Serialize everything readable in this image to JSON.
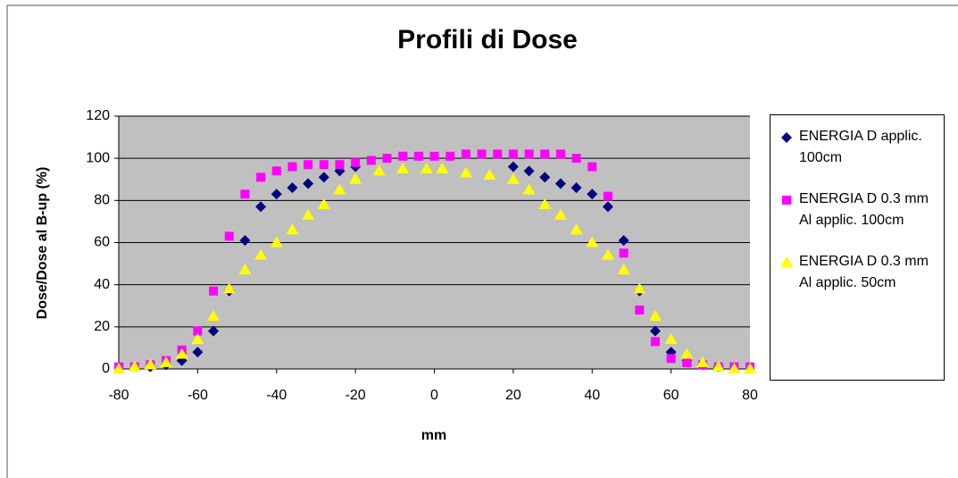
{
  "chart_data": {
    "type": "scatter",
    "title": "Profili di Dose",
    "x_label": "mm",
    "y_label": "Dose/Dose al B-up (%)",
    "xlim": [
      -80,
      80
    ],
    "xticks": [
      -80,
      -60,
      -40,
      -20,
      0,
      20,
      40,
      60,
      80
    ],
    "ylim": [
      0,
      120
    ],
    "yticks": [
      0,
      20,
      40,
      60,
      80,
      100,
      120
    ],
    "grid": true,
    "legend": "right",
    "series": [
      {
        "name": "ENERGIA D applic. 100cm",
        "color": "#000080",
        "marker": "diamond",
        "x": [
          -72,
          -68,
          -64,
          -60,
          -56,
          -52,
          -48,
          -44,
          -40,
          -36,
          -32,
          -28,
          -24,
          -20,
          20,
          24,
          28,
          32,
          36,
          40,
          44,
          48,
          52,
          56,
          60,
          64,
          68,
          72
        ],
        "values": [
          1,
          2,
          4,
          8,
          18,
          37,
          61,
          77,
          83,
          86,
          88,
          91,
          94,
          96,
          96,
          94,
          91,
          88,
          86,
          83,
          77,
          61,
          37,
          18,
          8,
          4,
          2,
          1
        ]
      },
      {
        "name": "ENERGIA D 0.3 mm Al applic. 100cm",
        "color": "#ff00ff",
        "marker": "square",
        "x": [
          -80,
          -76,
          -72,
          -68,
          -64,
          -60,
          -56,
          -52,
          -48,
          -44,
          -40,
          -36,
          -32,
          -28,
          -24,
          -20,
          -16,
          -12,
          -8,
          -4,
          0,
          4,
          8,
          12,
          16,
          20,
          24,
          28,
          32,
          36,
          40,
          44,
          48,
          52,
          56,
          60,
          64,
          68,
          72,
          76,
          80
        ],
        "values": [
          1,
          1,
          2,
          4,
          9,
          18,
          37,
          63,
          83,
          91,
          94,
          96,
          97,
          97,
          97,
          98,
          99,
          100,
          101,
          101,
          101,
          101,
          102,
          102,
          102,
          102,
          102,
          102,
          102,
          100,
          96,
          82,
          55,
          28,
          13,
          5,
          3,
          2,
          1,
          1,
          1
        ]
      },
      {
        "name": "ENERGIA D 0.3 mm Al applic. 50cm",
        "color": "#ffff00",
        "marker": "triangle",
        "x": [
          -80,
          -76,
          -72,
          -68,
          -64,
          -60,
          -56,
          -52,
          -48,
          -44,
          -40,
          -36,
          -32,
          -28,
          -24,
          -20,
          -14,
          -8,
          -2,
          2,
          8,
          14,
          20,
          24,
          28,
          32,
          36,
          40,
          44,
          48,
          52,
          56,
          60,
          64,
          68,
          72,
          76,
          80
        ],
        "values": [
          0,
          1,
          2,
          3,
          7,
          14,
          25,
          38,
          47,
          54,
          60,
          66,
          73,
          78,
          85,
          90,
          94,
          95,
          95,
          95,
          93,
          92,
          90,
          85,
          78,
          73,
          66,
          60,
          54,
          47,
          38,
          25,
          14,
          7,
          3,
          1,
          0,
          0
        ]
      }
    ]
  }
}
